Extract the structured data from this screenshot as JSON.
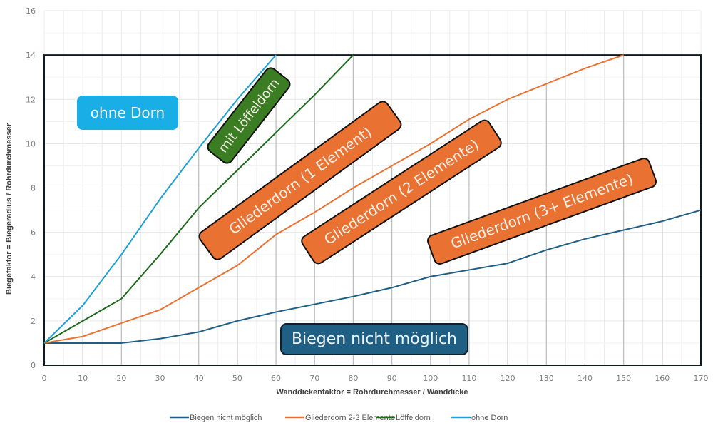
{
  "chart_data": {
    "type": "line",
    "title": "",
    "xlabel": "Wanddickenfaktor = Rohrdurchmesser / Wanddicke",
    "ylabel": "Biegefaktor = Biegeradius / Rohrdurchmesser",
    "xlim": [
      0,
      170
    ],
    "ylim": [
      0,
      16
    ],
    "x_ticks": [
      0,
      10,
      20,
      30,
      40,
      50,
      60,
      70,
      80,
      90,
      100,
      110,
      120,
      130,
      140,
      150,
      160,
      170
    ],
    "y_ticks": [
      0,
      2,
      4,
      6,
      8,
      10,
      12,
      14,
      16
    ],
    "grid": true,
    "legend_position": "bottom",
    "series": [
      {
        "name": "Biegen nicht möglich",
        "color": "#1f5f83",
        "x": [
          0,
          10,
          20,
          30,
          40,
          50,
          60,
          70,
          80,
          90,
          100,
          110,
          120,
          130,
          140,
          150,
          160,
          170
        ],
        "y": [
          1,
          1,
          1,
          1.2,
          1.5,
          2,
          2.4,
          2.75,
          3.1,
          3.5,
          4,
          4.3,
          4.6,
          5.2,
          5.7,
          6.1,
          6.5,
          7
        ]
      },
      {
        "name": "Gliederdorn 2-3 Elemente",
        "color": "#e97132",
        "x": [
          0,
          10,
          20,
          30,
          40,
          50,
          60,
          70,
          80,
          90,
          100,
          110,
          120,
          130,
          140,
          150
        ],
        "y": [
          1,
          1.3,
          1.9,
          2.5,
          3.5,
          4.5,
          5.9,
          6.9,
          8,
          9,
          10,
          11.1,
          12,
          12.7,
          13.4,
          14
        ]
      },
      {
        "name": "Löffeldorn",
        "color": "#1e6b1e",
        "x": [
          0,
          10,
          20,
          30,
          40,
          50,
          60,
          70,
          80
        ],
        "y": [
          1,
          2,
          3,
          5,
          7.1,
          8.8,
          10.5,
          12.2,
          14
        ]
      },
      {
        "name": "ohne Dorn",
        "color": "#1ea0d6",
        "x": [
          0,
          10,
          20,
          30,
          40,
          50,
          60
        ],
        "y": [
          1,
          2.7,
          5,
          7.5,
          9.8,
          12,
          14
        ]
      }
    ],
    "annotations": [
      {
        "text": "ohne Dorn",
        "bg": "#19aee6"
      },
      {
        "text": "mit Löffeldorn",
        "bg": "#3a7d22"
      },
      {
        "text": "Gliederdorn (1 Element)",
        "bg": "#e97132"
      },
      {
        "text": "Gliederdorn (2 Elemente)",
        "bg": "#e97132"
      },
      {
        "text": "Gliederdorn (3+ Elemente)",
        "bg": "#e97132"
      },
      {
        "text": "Biegen nicht möglich",
        "bg": "#1f5f83"
      }
    ]
  },
  "labels": {
    "ohne_dorn": "ohne Dorn",
    "loeffeldorn": "mit Löffeldorn",
    "glieder1": "Gliederdorn (1 Element)",
    "glieder2": "Gliederdorn (2 Elemente)",
    "glieder3": "Gliederdorn (3+ Elemente)",
    "nicht_moeglich": "Biegen nicht möglich"
  }
}
